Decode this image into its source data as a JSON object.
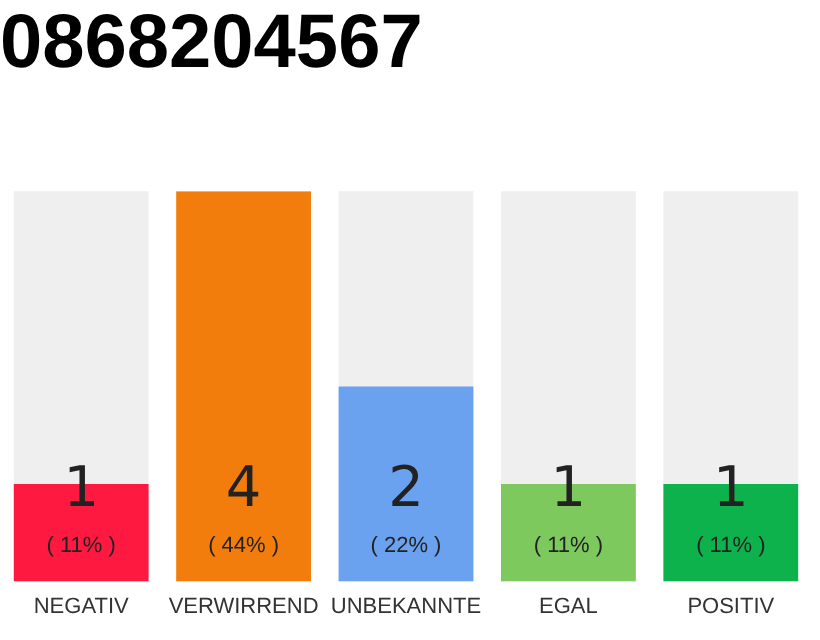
{
  "chart_data": {
    "type": "bar",
    "title": "0868204567",
    "categories": [
      "NEGATIV",
      "VERWIRREND",
      "UNBEKANNTE",
      "EGAL",
      "POSITIV"
    ],
    "values": [
      1,
      4,
      2,
      1,
      1
    ],
    "colors": [
      "#fe1940",
      "#f27d0c",
      "#6aa2ef",
      "#7dc95e",
      "#0db24c"
    ],
    "annotations": [
      "( 11% )",
      "( 44% )",
      "( 22% )",
      "( 11% )",
      "( 11% )"
    ],
    "data_labels": true,
    "tick_labels": "x",
    "grid": false,
    "legend": false
  }
}
